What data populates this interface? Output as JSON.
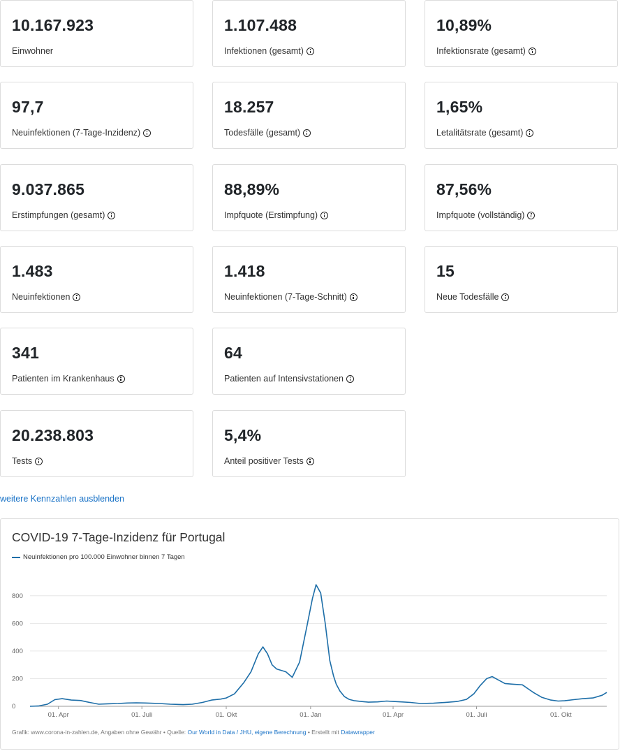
{
  "cards": [
    {
      "value": "10.167.923",
      "label": "Einwohner",
      "info": false
    },
    {
      "value": "1.107.488",
      "label": "Infektionen (gesamt)",
      "info": true
    },
    {
      "value": "10,89%",
      "label": "Infektionsrate (gesamt)",
      "info": true
    },
    {
      "value": "97,7",
      "label": "Neuinfektionen (7-Tage-Inzidenz)",
      "info": true
    },
    {
      "value": "18.257",
      "label": "Todesfälle (gesamt)",
      "info": true
    },
    {
      "value": "1,65%",
      "label": "Letalitätsrate (gesamt)",
      "info": true
    },
    {
      "value": "9.037.865",
      "label": "Erstimpfungen (gesamt)",
      "info": true
    },
    {
      "value": "88,89%",
      "label": "Impfquote (Erstimpfung)",
      "info": true
    },
    {
      "value": "87,56%",
      "label": "Impfquote (vollständig)",
      "info": true
    },
    {
      "value": "1.483",
      "label": "Neuinfektionen",
      "info": true
    },
    {
      "value": "1.418",
      "label": "Neuinfektionen (7-Tage-Schnitt)",
      "info": true
    },
    {
      "value": "15",
      "label": "Neue Todesfälle",
      "info": true
    },
    {
      "value": "341",
      "label": "Patienten im Krankenhaus",
      "info": true
    },
    {
      "value": "64",
      "label": "Patienten auf Intensivstationen",
      "info": true
    },
    {
      "value": "20.238.803",
      "label": "Tests",
      "info": true
    },
    {
      "value": "5,4%",
      "label": "Anteil positiver Tests",
      "info": true
    }
  ],
  "toggle_link": "weitere Kennzahlen ausblenden",
  "chart": {
    "footer_prefix": "Grafik: www.corona-in-zahlen.de, Angaben ohne Gewähr • Quelle: ",
    "footer_source": "Our World in Data / JHU, eigene Berechnung",
    "footer_mid": " • Erstellt mit ",
    "footer_tool": "Datawrapper"
  },
  "chart_data": {
    "type": "line",
    "title": "COVID-19 7-Tage-Inzidenz für Portugal",
    "series": [
      {
        "name": "Neuinfektionen pro 100.000 Einwohner binnen 7 Tagen",
        "color": "#1d6ea8",
        "x": [
          "2020-03-01",
          "2020-03-10",
          "2020-03-20",
          "2020-03-28",
          "2020-04-05",
          "2020-04-15",
          "2020-04-25",
          "2020-05-05",
          "2020-05-15",
          "2020-05-25",
          "2020-06-05",
          "2020-06-15",
          "2020-06-25",
          "2020-07-05",
          "2020-07-20",
          "2020-08-01",
          "2020-08-15",
          "2020-08-25",
          "2020-09-05",
          "2020-09-15",
          "2020-09-25",
          "2020-10-01",
          "2020-10-10",
          "2020-10-20",
          "2020-10-28",
          "2020-11-05",
          "2020-11-10",
          "2020-11-15",
          "2020-11-20",
          "2020-11-25",
          "2020-11-30",
          "2020-12-05",
          "2020-12-12",
          "2020-12-20",
          "2020-12-28",
          "2021-01-03",
          "2021-01-07",
          "2021-01-12",
          "2021-01-17",
          "2021-01-22",
          "2021-01-26",
          "2021-01-29",
          "2021-02-02",
          "2021-02-07",
          "2021-02-12",
          "2021-02-18",
          "2021-02-25",
          "2021-03-05",
          "2021-03-15",
          "2021-03-25",
          "2021-04-01",
          "2021-04-10",
          "2021-04-20",
          "2021-05-01",
          "2021-05-15",
          "2021-06-01",
          "2021-06-10",
          "2021-06-20",
          "2021-06-28",
          "2021-07-05",
          "2021-07-12",
          "2021-07-18",
          "2021-07-25",
          "2021-08-01",
          "2021-08-10",
          "2021-08-20",
          "2021-09-01",
          "2021-09-10",
          "2021-09-20",
          "2021-09-28",
          "2021-10-05",
          "2021-10-15",
          "2021-10-25",
          "2021-11-05",
          "2021-11-15",
          "2021-11-20"
        ],
        "values": [
          0,
          2,
          15,
          48,
          55,
          45,
          42,
          28,
          15,
          18,
          20,
          24,
          25,
          24,
          20,
          15,
          12,
          15,
          28,
          45,
          52,
          60,
          90,
          170,
          250,
          380,
          430,
          380,
          300,
          270,
          260,
          250,
          210,
          320,
          580,
          780,
          880,
          820,
          600,
          330,
          220,
          160,
          110,
          70,
          50,
          40,
          35,
          30,
          32,
          38,
          35,
          32,
          28,
          20,
          22,
          30,
          35,
          50,
          90,
          150,
          200,
          215,
          190,
          165,
          160,
          155,
          100,
          65,
          45,
          38,
          40,
          48,
          55,
          60,
          80,
          100
        ]
      }
    ],
    "xticks": [
      "01. Apr",
      "01. Juli",
      "01. Okt",
      "01. Jan",
      "01. Apr",
      "01. Juli",
      "01. Okt"
    ],
    "yticks": [
      0,
      200,
      400,
      600,
      800
    ],
    "ylim": [
      0,
      900
    ],
    "grid": true
  }
}
